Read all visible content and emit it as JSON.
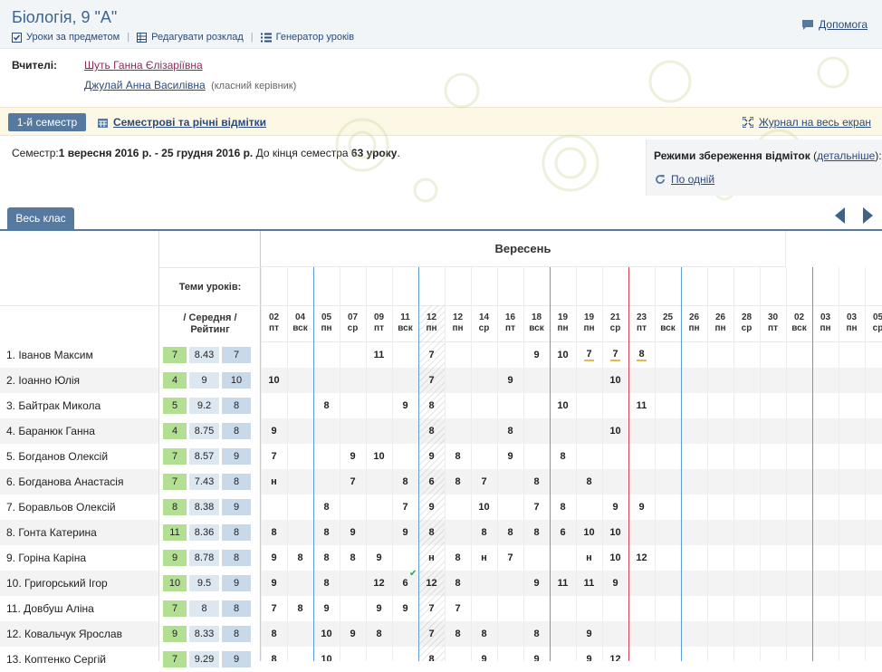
{
  "header": {
    "title": "Біологія, 9 \"А\"",
    "toolbar": [
      {
        "label": "Уроки за предметом",
        "icon": "check-square-icon"
      },
      {
        "label": "Редагувати розклад",
        "icon": "table-icon"
      },
      {
        "label": "Генератор уроків",
        "icon": "list-icon"
      }
    ],
    "help_label": "Допомога"
  },
  "teachers": {
    "label": "Вчителі:",
    "teacher1": "Шуть Ганна Єлізаріївна",
    "teacher2": "Джулай Анна Василівна",
    "teacher2_note": "(класний керівник)"
  },
  "semester_bar": {
    "semester_button": "1-й семестр",
    "marks_link": "Семестрові та річні відмітки",
    "fullscreen_link": "Журнал на весь екран"
  },
  "semester_info": {
    "prefix": "Семестр:",
    "range": "1 вересня 2016 р. - 25 грудня 2016 р.",
    "middle": " До кінця семестра ",
    "count": "63 уроку",
    "suffix": "."
  },
  "save_modes": {
    "title": "Режими збереження відміток",
    "open_paren": " (",
    "details_link": "детальніше",
    "close_paren": "):",
    "option": "По одній"
  },
  "tabs": {
    "whole_class": "Весь клас"
  },
  "journal": {
    "month": "Вересень",
    "themes_label": "Теми уроків:",
    "avg_label_line1": "/ Середня /",
    "avg_label_line2": "Рейтинг",
    "days": [
      {
        "d": "02",
        "w": "пт"
      },
      {
        "d": "04",
        "w": "вск"
      },
      {
        "d": "05",
        "w": "пн"
      },
      {
        "d": "07",
        "w": "ср"
      },
      {
        "d": "09",
        "w": "пт"
      },
      {
        "d": "11",
        "w": "вск"
      },
      {
        "d": "12",
        "w": "пн"
      },
      {
        "d": "12",
        "w": "пн"
      },
      {
        "d": "14",
        "w": "ср"
      },
      {
        "d": "16",
        "w": "пт"
      },
      {
        "d": "18",
        "w": "вск"
      },
      {
        "d": "19",
        "w": "пн"
      },
      {
        "d": "19",
        "w": "пн"
      },
      {
        "d": "21",
        "w": "ср"
      },
      {
        "d": "23",
        "w": "пт"
      },
      {
        "d": "25",
        "w": "вск"
      },
      {
        "d": "26",
        "w": "пн"
      },
      {
        "d": "26",
        "w": "пн"
      },
      {
        "d": "28",
        "w": "ср"
      },
      {
        "d": "30",
        "w": "пт"
      },
      {
        "d": "02",
        "w": "вск"
      },
      {
        "d": "03",
        "w": "пн"
      },
      {
        "d": "03",
        "w": "пн"
      },
      {
        "d": "05",
        "w": "ср"
      }
    ],
    "students": [
      {
        "name": "1. Іванов Максим",
        "m1": "7",
        "avg": "8.43",
        "rank": "7",
        "marks": [
          "",
          "",
          "",
          "",
          "11",
          "",
          "7",
          "",
          "",
          "",
          "9",
          "10",
          "7",
          "7",
          "8",
          "",
          "",
          "",
          "",
          "",
          "",
          "",
          "",
          ""
        ]
      },
      {
        "name": "2. Іоанно Юлія",
        "m1": "4",
        "avg": "9",
        "rank": "10",
        "marks": [
          "10",
          "",
          "",
          "",
          "",
          "",
          "7",
          "",
          "",
          "9",
          "",
          "",
          "",
          "10",
          "",
          "",
          "",
          "",
          "",
          "",
          "",
          "",
          "",
          ""
        ]
      },
      {
        "name": "3. Байтрак Микола",
        "m1": "5",
        "avg": "9.2",
        "rank": "8",
        "marks": [
          "",
          "",
          "8",
          "",
          "",
          "9",
          "8",
          "",
          "",
          "",
          "",
          "10",
          "",
          "",
          "11",
          "",
          "",
          "",
          "",
          "",
          "",
          "",
          "",
          ""
        ]
      },
      {
        "name": "4. Баранюк Ганна",
        "m1": "4",
        "avg": "8.75",
        "rank": "8",
        "marks": [
          "9",
          "",
          "",
          "",
          "",
          "",
          "8",
          "",
          "",
          "8",
          "",
          "",
          "",
          "10",
          "",
          "",
          "",
          "",
          "",
          "",
          "",
          "",
          "",
          ""
        ]
      },
      {
        "name": "5. Богданов Олексій",
        "m1": "7",
        "avg": "8.57",
        "rank": "9",
        "marks": [
          "7",
          "",
          "",
          "9",
          "10",
          "",
          "9",
          "8",
          "",
          "9",
          "",
          "8",
          "",
          "",
          "",
          "",
          "",
          "",
          "",
          "",
          "",
          "",
          "",
          ""
        ]
      },
      {
        "name": "6. Богданова Анастасія",
        "m1": "7",
        "avg": "7.43",
        "rank": "8",
        "marks": [
          "н",
          "",
          "",
          "7",
          "",
          "8",
          "6",
          "8",
          "7",
          "",
          "8",
          "",
          "8",
          "",
          "",
          "",
          "",
          "",
          "",
          "",
          "",
          "",
          "",
          ""
        ]
      },
      {
        "name": "7. Боравльов Олексій",
        "m1": "8",
        "avg": "8.38",
        "rank": "9",
        "marks": [
          "",
          "",
          "8",
          "",
          "",
          "7",
          "9",
          "",
          "10",
          "",
          "7",
          "8",
          "",
          "9",
          "9",
          "",
          "",
          "",
          "",
          "",
          "",
          "",
          "",
          ""
        ]
      },
      {
        "name": "8. Гонта Катерина",
        "m1": "11",
        "avg": "8.36",
        "rank": "8",
        "marks": [
          "8",
          "",
          "8",
          "9",
          "",
          "9",
          "8",
          "",
          "8",
          "8",
          "8",
          "6",
          "10",
          "10",
          "",
          "",
          "",
          "",
          "",
          "",
          "",
          "",
          "",
          ""
        ]
      },
      {
        "name": "9. Горіна Каріна",
        "m1": "9",
        "avg": "8.78",
        "rank": "8",
        "marks": [
          "9",
          "8",
          "8",
          "8",
          "9",
          "",
          "н",
          "8",
          "н",
          "7",
          "",
          "",
          "н",
          "10",
          "12",
          "",
          "",
          "",
          "",
          "",
          "",
          "",
          "",
          ""
        ]
      },
      {
        "name": "10. Григорський Ігор",
        "m1": "10",
        "avg": "9.5",
        "rank": "9",
        "marks": [
          "9",
          "",
          "8",
          "",
          "12",
          "6",
          "12",
          "8",
          "",
          "",
          "9",
          "11",
          "11",
          "9",
          "",
          "",
          "",
          "",
          "",
          "",
          "",
          "",
          "",
          ""
        ]
      },
      {
        "name": "11. Довбуш Аліна",
        "m1": "7",
        "avg": "8",
        "rank": "8",
        "marks": [
          "7",
          "8",
          "9",
          "",
          "9",
          "9",
          "7",
          "7",
          "",
          "",
          "",
          "",
          "",
          "",
          "",
          "",
          "",
          "",
          "",
          "",
          "",
          "",
          "",
          ""
        ]
      },
      {
        "name": "12. Ковальчук Ярослав",
        "m1": "9",
        "avg": "8.33",
        "rank": "8",
        "marks": [
          "8",
          "",
          "10",
          "9",
          "8",
          "",
          "7",
          "8",
          "8",
          "",
          "8",
          "",
          "9",
          "",
          "",
          "",
          "",
          "",
          "",
          "",
          "",
          "",
          "",
          ""
        ]
      },
      {
        "name": "13. Коптенко Сергій",
        "m1": "7",
        "avg": "9.29",
        "rank": "9",
        "marks": [
          "8",
          "",
          "10",
          "",
          "",
          "",
          "8",
          "",
          "9",
          "",
          "9",
          "",
          "9",
          "12",
          "",
          "",
          "",
          "",
          "",
          "",
          "",
          "",
          "",
          ""
        ]
      }
    ]
  },
  "colors": {
    "accent": "#55799f",
    "week_line": "#5b9bd8",
    "today_line": "#d9435a",
    "mark_underline": "#e7b850",
    "chip_green": "#b3df93"
  }
}
